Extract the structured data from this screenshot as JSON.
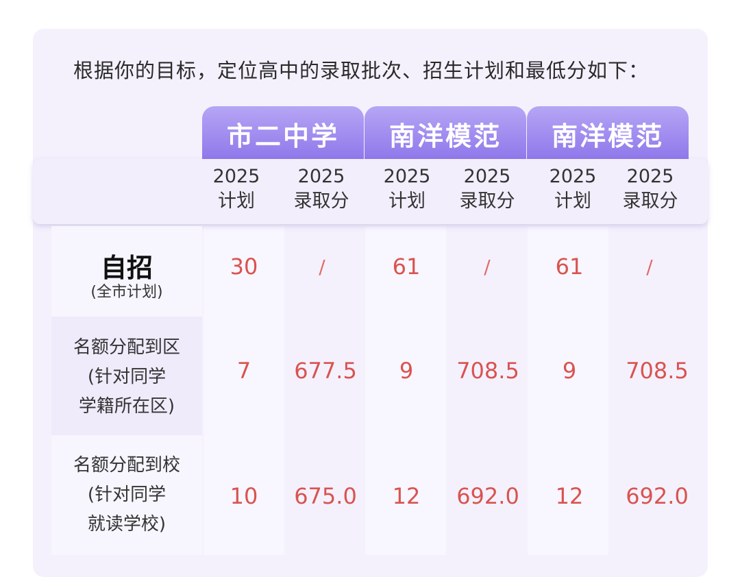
{
  "intro_text": "根据你的目标，定位高中的录取批次、招生计划和最低分如下：",
  "schools": [
    "市二中学",
    "南洋模范",
    "南洋模范"
  ],
  "column_headers": {
    "plan": [
      "2025",
      "计划"
    ],
    "score": [
      "2025",
      "录取分"
    ]
  },
  "rows": [
    {
      "label_title": "自招",
      "label_sub": "(全市计划)",
      "values": [
        "30",
        "/",
        "61",
        "/",
        "61",
        "/"
      ]
    },
    {
      "label_lines": [
        "名额分配到区",
        "(针对同学",
        "学籍所在区)"
      ],
      "values": [
        "7",
        "677.5",
        "9",
        "708.5",
        "9",
        "708.5"
      ]
    },
    {
      "label_lines": [
        "名额分配到校",
        "(针对同学",
        "就读学校)"
      ],
      "values": [
        "10",
        "675.0",
        "12",
        "692.0",
        "12",
        "692.0"
      ]
    }
  ],
  "colors": {
    "tab_gradient_top": "#b6a6f5",
    "tab_gradient_bottom": "#8e76ea",
    "value_red": "#d9534f",
    "card_bg": "#f4f1fd"
  }
}
